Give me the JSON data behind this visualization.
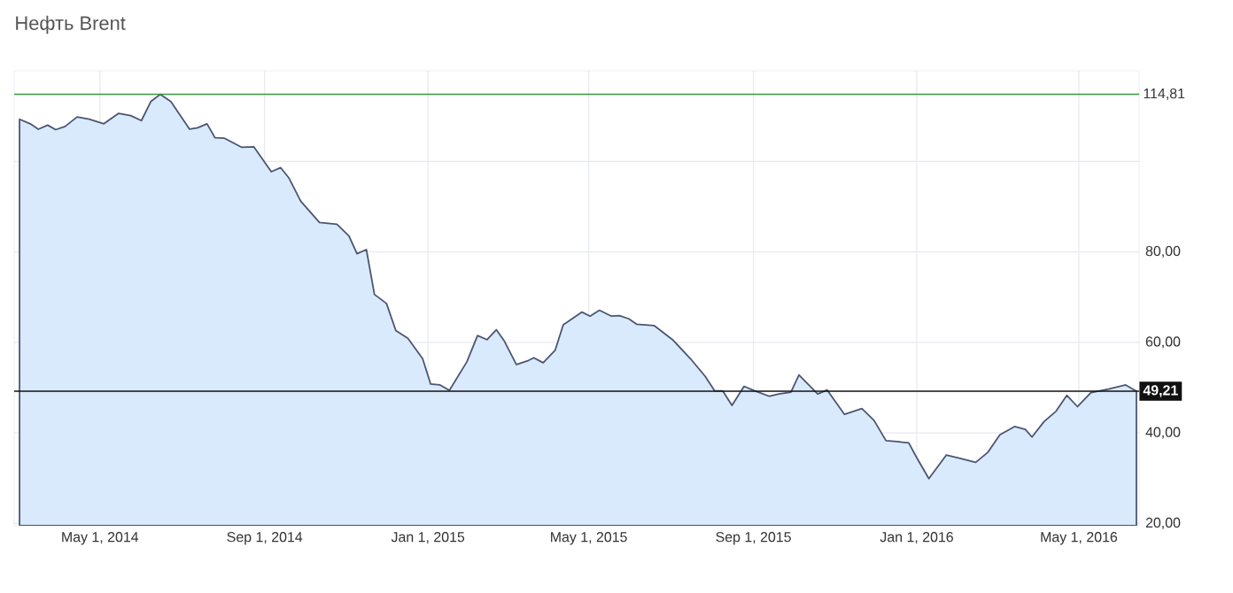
{
  "chart_data": {
    "type": "area",
    "title": "Нефть Brent",
    "x": [
      "2014-03-02",
      "2014-03-10",
      "2014-03-16",
      "2014-03-23",
      "2014-03-29",
      "2014-04-05",
      "2014-04-14",
      "2014-04-23",
      "2014-05-04",
      "2014-05-15",
      "2014-05-24",
      "2014-06-01",
      "2014-06-08",
      "2014-06-15",
      "2014-06-23",
      "2014-07-07",
      "2014-07-13",
      "2014-07-20",
      "2014-07-26",
      "2014-08-02",
      "2014-08-15",
      "2014-08-24",
      "2014-09-06",
      "2014-09-13",
      "2014-09-19",
      "2014-09-28",
      "2014-10-12",
      "2014-10-25",
      "2014-11-03",
      "2014-11-09",
      "2014-11-16",
      "2014-11-22",
      "2014-12-01",
      "2014-12-08",
      "2014-12-17",
      "2014-12-28",
      "2015-01-03",
      "2015-01-10",
      "2015-01-17",
      "2015-01-30",
      "2015-02-07",
      "2015-02-14",
      "2015-02-21",
      "2015-02-27",
      "2015-03-08",
      "2015-03-17",
      "2015-03-21",
      "2015-03-28",
      "2015-04-06",
      "2015-04-12",
      "2015-04-26",
      "2015-05-02",
      "2015-05-09",
      "2015-05-18",
      "2015-05-24",
      "2015-05-31",
      "2015-06-06",
      "2015-06-19",
      "2015-07-03",
      "2015-07-16",
      "2015-07-27",
      "2015-08-03",
      "2015-08-09",
      "2015-08-16",
      "2015-08-25",
      "2015-09-02",
      "2015-09-13",
      "2015-09-20",
      "2015-09-29",
      "2015-10-05",
      "2015-10-19",
      "2015-10-26",
      "2015-11-08",
      "2015-11-21",
      "2015-11-30",
      "2015-12-09",
      "2015-12-17",
      "2015-12-26",
      "2016-01-01",
      "2016-01-10",
      "2016-01-23",
      "2016-02-01",
      "2016-02-14",
      "2016-02-23",
      "2016-03-03",
      "2016-03-14",
      "2016-03-22",
      "2016-03-27",
      "2016-04-05",
      "2016-04-14",
      "2016-04-22",
      "2016-04-30",
      "2016-05-10",
      "2016-05-23",
      "2016-06-05",
      "2016-06-13"
    ],
    "series": [
      {
        "color": "#d9eafc",
        "values": [
          109.3,
          108.3,
          107.1,
          108.0,
          107.0,
          107.7,
          109.8,
          109.3,
          108.3,
          110.6,
          110.1,
          109.0,
          113.2,
          114.8,
          113.2,
          107.1,
          107.4,
          108.3,
          105.2,
          105.1,
          103.1,
          103.2,
          97.7,
          98.6,
          96.4,
          91.2,
          86.5,
          86.1,
          83.5,
          79.6,
          80.5,
          70.6,
          68.6,
          62.6,
          60.9,
          56.4,
          50.8,
          50.6,
          49.4,
          55.7,
          61.5,
          60.6,
          62.8,
          60.3,
          55.1,
          56.0,
          56.6,
          55.5,
          58.3,
          63.9,
          66.7,
          65.8,
          67.1,
          65.8,
          65.9,
          65.2,
          64.0,
          63.7,
          60.5,
          56.4,
          52.5,
          49.3,
          49.3,
          46.1,
          50.3,
          49.3,
          48.1,
          48.6,
          49.0,
          52.8,
          48.6,
          49.5,
          44.1,
          45.4,
          42.8,
          38.3,
          38.1,
          37.8,
          34.5,
          29.9,
          35.1,
          34.5,
          33.5,
          35.7,
          39.6,
          41.4,
          40.8,
          39.1,
          42.5,
          44.8,
          48.3,
          45.8,
          48.9,
          49.7,
          50.6,
          49.21
        ]
      }
    ],
    "xlim": [
      "2014-02-26",
      "2016-06-15"
    ],
    "xticks": [
      {
        "value": "2014-05-01",
        "label": "May 1, 2014"
      },
      {
        "value": "2014-09-01",
        "label": "Sep 1, 2014"
      },
      {
        "value": "2015-01-01",
        "label": "Jan 1, 2015"
      },
      {
        "value": "2015-05-01",
        "label": "May 1, 2015"
      },
      {
        "value": "2015-09-01",
        "label": "Sep 1, 2015"
      },
      {
        "value": "2016-01-01",
        "label": "Jan 1, 2016"
      },
      {
        "value": "2016-05-01",
        "label": "May 1, 2016"
      }
    ],
    "ylim": [
      19.5,
      120
    ],
    "yticks": [
      {
        "value": 20,
        "label": "20,00"
      },
      {
        "value": 40,
        "label": "40,00"
      },
      {
        "value": 60,
        "label": "60,00"
      },
      {
        "value": 80,
        "label": "80,00"
      },
      {
        "value": 100,
        "label": null
      }
    ],
    "ref_lines": [
      {
        "axis": "y",
        "value": 114.81,
        "label": "114,81",
        "color": "#3a9a3a"
      },
      {
        "axis": "y",
        "value": 49.21,
        "label": "49,21",
        "color": "#111111"
      }
    ],
    "grid": true
  }
}
